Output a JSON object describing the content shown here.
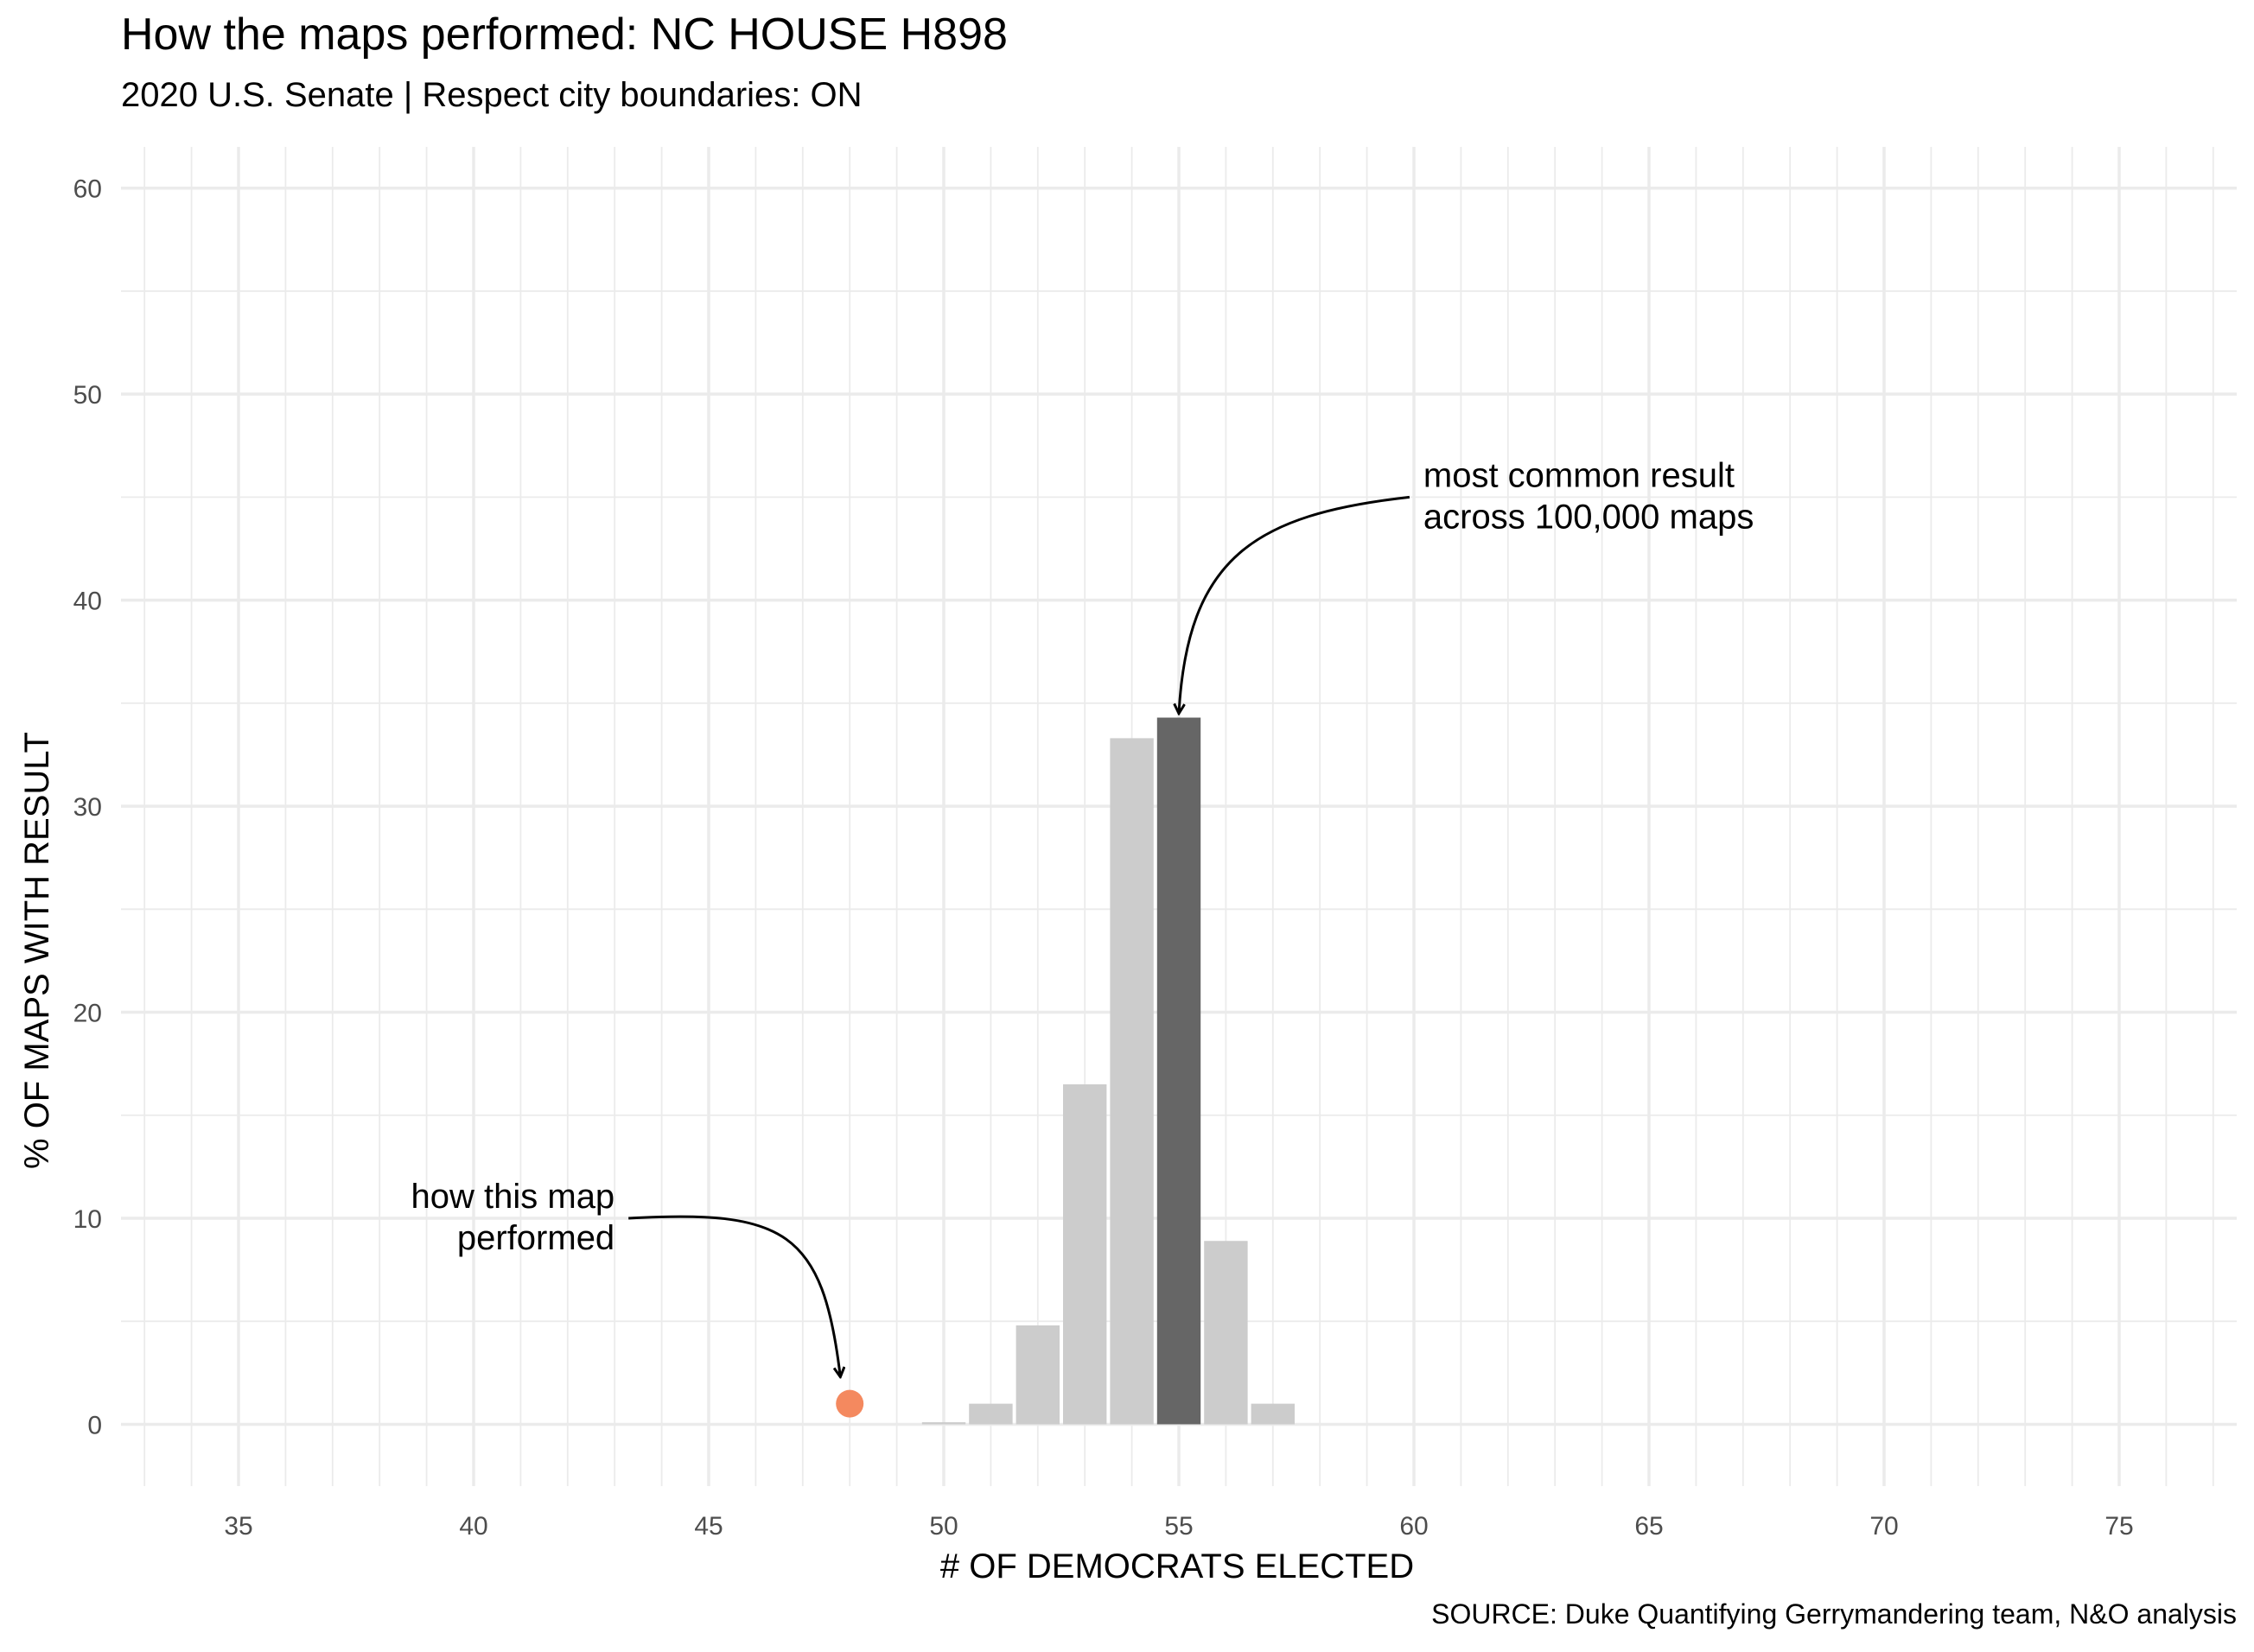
{
  "chart_data": {
    "type": "bar",
    "title": "How the maps performed: NC HOUSE H898",
    "subtitle": "2020 U.S. Senate | Respect city boundaries: ON",
    "caption": "SOURCE: Duke Quantifying Gerrymandering team, N&O analysis",
    "xlabel": "# OF DEMOCRATS ELECTED",
    "ylabel": "% OF MAPS WITH RESULT",
    "xlim": [
      32.5,
      77.5
    ],
    "ylim": [
      -3,
      62
    ],
    "x_ticks": [
      35,
      40,
      45,
      50,
      55,
      60,
      65,
      70,
      75
    ],
    "y_ticks": [
      0,
      10,
      20,
      30,
      40,
      50,
      60
    ],
    "grid": true,
    "x": [
      50,
      51,
      52,
      53,
      54,
      55,
      56,
      57
    ],
    "values": [
      0.1,
      1.0,
      4.8,
      16.5,
      33.3,
      34.3,
      8.9,
      1.0
    ],
    "highlight_x": 55,
    "colors": {
      "bar": "#cccccc",
      "highlight": "#666666",
      "point": "#f4895f",
      "grid": "#ebebeb"
    },
    "this_map": {
      "x": 48,
      "y": 1.0
    },
    "annotations": [
      {
        "lines": [
          "most common result",
          "across 100,000 maps"
        ],
        "align": "left",
        "x": 60.2,
        "y": 45,
        "arrow_to": [
          55,
          34.5
        ]
      },
      {
        "lines": [
          "how this map",
          "performed"
        ],
        "align": "right",
        "x": 43,
        "y": 10,
        "arrow_to": [
          47.8,
          2.3
        ]
      }
    ]
  }
}
